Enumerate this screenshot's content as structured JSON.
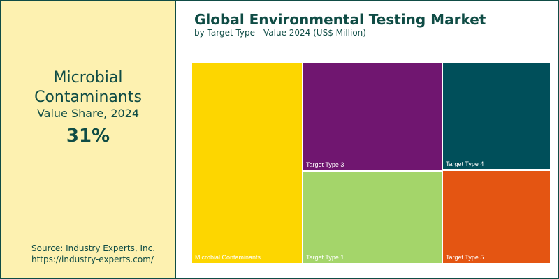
{
  "sidebar": {
    "highlight_name_line1": "Microbial",
    "highlight_name_line2": "Contaminants",
    "share_label": "Value Share, 2024",
    "share_value": "31%",
    "source_line1": "Source: Industry Experts, Inc.",
    "source_line2": "https://industry-experts.com/"
  },
  "colors": {
    "accent": "#0f4c45",
    "sidebar_bg": "#fdf1b0"
  },
  "chart_data": {
    "type": "treemap",
    "title": "Global Environmental Testing Market",
    "subtitle": "by Target Type - Value 2024 (US$ Million)",
    "series": [
      {
        "name": "Microbial Contaminants",
        "value": 31,
        "color": "#fdd600"
      },
      {
        "name": "Target Type 1",
        "value": 18,
        "color": "#a4d56a"
      },
      {
        "name": "Target Type 3",
        "value": 21,
        "color": "#701670"
      },
      {
        "name": "Target Type 4",
        "value": 16,
        "color": "#004f5a"
      },
      {
        "name": "Target Type 5",
        "value": 14,
        "color": "#e45512"
      }
    ]
  }
}
